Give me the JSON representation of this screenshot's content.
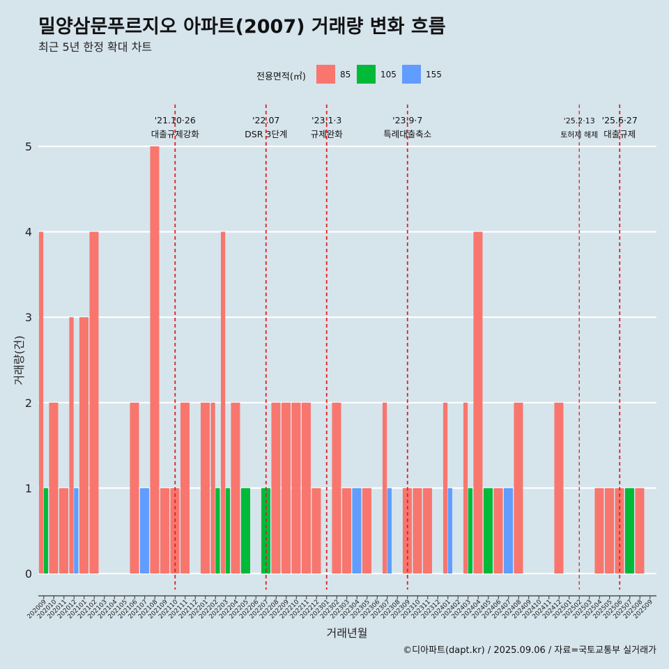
{
  "title": "밀양삼문푸르지오 아파트(2007) 거래량 변화 흐름",
  "subtitle": "최근 5년 한정 확대 차트",
  "caption": "©디아파트(dapt.kr) / 2025.09.06 / 자료=국토교통부 실거래가",
  "legend": {
    "title": "전용면적(㎡)",
    "items": [
      {
        "label": "85",
        "color": "#f8766d"
      },
      {
        "label": "105",
        "color": "#00ba38"
      },
      {
        "label": "155",
        "color": "#619cff"
      }
    ]
  },
  "chart_data": {
    "type": "bar",
    "xlabel": "거래년월",
    "ylabel": "거래량(건)",
    "ylim": [
      0,
      5
    ],
    "yticks": [
      0,
      1,
      2,
      3,
      4,
      5
    ],
    "grid": true,
    "legend_position": "top",
    "categories": [
      "202009",
      "202010",
      "202011",
      "202012",
      "202101",
      "202102",
      "202103",
      "202104",
      "202105",
      "202106",
      "202107",
      "202108",
      "202109",
      "202110",
      "202111",
      "202112",
      "202201",
      "202202",
      "202203",
      "202204",
      "202205",
      "202206",
      "202207",
      "202208",
      "202209",
      "202210",
      "202211",
      "202212",
      "202301",
      "202302",
      "202303",
      "202304",
      "202305",
      "202306",
      "202307",
      "202308",
      "202309",
      "202310",
      "202311",
      "202312",
      "202401",
      "202402",
      "202403",
      "202404",
      "202405",
      "202406",
      "202407",
      "202408",
      "202409",
      "202410",
      "202411",
      "202412",
      "202501",
      "202502",
      "202503",
      "202504",
      "202505",
      "202506",
      "202507",
      "202508",
      "202509"
    ],
    "series": [
      {
        "name": "85",
        "color": "#f8766d",
        "values": [
          4,
          2,
          1,
          3,
          3,
          4,
          0,
          0,
          0,
          2,
          0,
          5,
          1,
          1,
          2,
          0,
          2,
          2,
          4,
          2,
          0,
          0,
          0,
          2,
          2,
          2,
          2,
          1,
          0,
          2,
          1,
          0,
          1,
          0,
          2,
          0,
          1,
          1,
          1,
          0,
          2,
          0,
          2,
          4,
          0,
          1,
          0,
          2,
          0,
          0,
          0,
          2,
          0,
          0,
          0,
          1,
          1,
          1,
          0,
          1,
          0
        ]
      },
      {
        "name": "105",
        "color": "#00ba38",
        "values": [
          1,
          0,
          0,
          0,
          0,
          0,
          0,
          0,
          0,
          0,
          0,
          0,
          0,
          0,
          0,
          0,
          0,
          1,
          1,
          0,
          1,
          0,
          1,
          0,
          0,
          0,
          0,
          0,
          0,
          0,
          0,
          0,
          0,
          0,
          0,
          0,
          0,
          0,
          0,
          0,
          0,
          0,
          1,
          0,
          1,
          0,
          0,
          0,
          0,
          0,
          0,
          0,
          0,
          0,
          0,
          0,
          0,
          0,
          1,
          0,
          0
        ]
      },
      {
        "name": "155",
        "color": "#619cff",
        "values": [
          0,
          0,
          0,
          1,
          0,
          0,
          0,
          0,
          0,
          0,
          1,
          0,
          0,
          0,
          0,
          0,
          0,
          0,
          0,
          0,
          0,
          0,
          0,
          0,
          0,
          0,
          0,
          0,
          0,
          0,
          0,
          1,
          0,
          0,
          1,
          0,
          0,
          0,
          0,
          0,
          1,
          0,
          0,
          0,
          0,
          0,
          1,
          0,
          0,
          0,
          0,
          0,
          0,
          0,
          0,
          0,
          0,
          0,
          0,
          0,
          0
        ]
      }
    ],
    "annotations": [
      {
        "date": "'21.10·26",
        "text": "대출규제강화",
        "x": 13.5
      },
      {
        "date": "'22.07",
        "text": "DSR 3단계",
        "x": 22.5
      },
      {
        "date": "'23.1·3",
        "text": "규제완화",
        "x": 28.5
      },
      {
        "date": "'23.9·7",
        "text": "특례대출축소",
        "x": 36.5
      },
      {
        "date": "'25.2·13",
        "text": "토허제 해제",
        "x": 53.5,
        "small": true
      },
      {
        "date": "'25.6·27",
        "text": "대출규제",
        "x": 57.5
      }
    ]
  }
}
